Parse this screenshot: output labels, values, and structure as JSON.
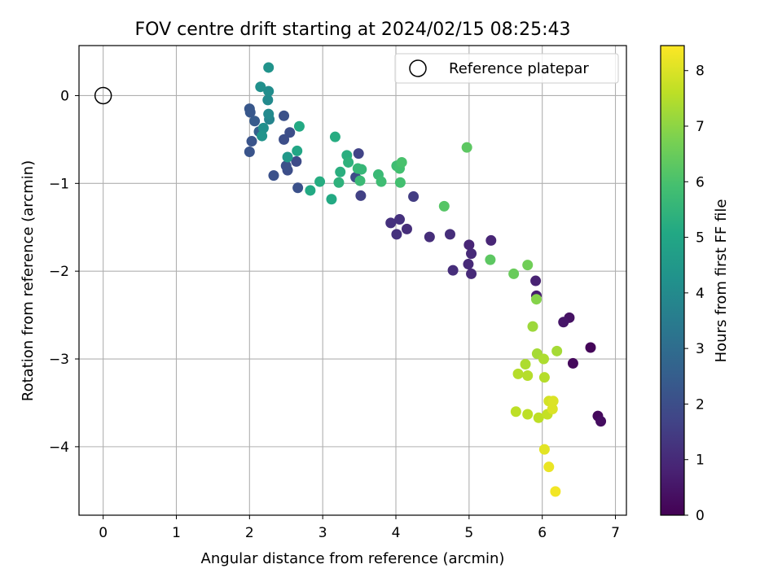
{
  "chart_data": {
    "type": "scatter",
    "title": "FOV centre drift starting at 2024/02/15 08:25:43",
    "xlabel": "Angular distance from reference (arcmin)",
    "ylabel": "Rotation from reference (arcmin)",
    "colorbar_label": "Hours from first FF file",
    "xlim": [
      -0.33,
      7.15
    ],
    "ylim": [
      -4.78,
      0.57
    ],
    "clim": [
      0,
      8.45
    ],
    "grid": true,
    "legend_position": "top-right",
    "x_ticks": [
      0,
      1,
      2,
      3,
      4,
      5,
      6,
      7
    ],
    "x_tick_labels": [
      "0",
      "1",
      "2",
      "3",
      "4",
      "5",
      "6",
      "7"
    ],
    "y_ticks": [
      0,
      -1,
      -2,
      -3,
      -4
    ],
    "y_tick_labels": [
      "0",
      "−1",
      "−2",
      "−3",
      "−4"
    ],
    "c_ticks": [
      0,
      1,
      2,
      3,
      4,
      5,
      6,
      7,
      8
    ],
    "c_tick_labels": [
      "0",
      "1",
      "2",
      "3",
      "4",
      "5",
      "6",
      "7",
      "8"
    ],
    "reference": {
      "label": "Reference platepar",
      "x": 0,
      "y": 0
    },
    "series": [
      {
        "points": [
          [
            6.66,
            -2.87,
            0.1
          ],
          [
            6.42,
            -3.05,
            0.2
          ],
          [
            6.76,
            -3.65,
            0.2
          ],
          [
            6.8,
            -3.71,
            0.3
          ],
          [
            6.37,
            -2.53,
            0.4
          ],
          [
            6.29,
            -2.58,
            0.5
          ],
          [
            5.92,
            -2.28,
            0.7
          ],
          [
            5.91,
            -2.11,
            0.8
          ],
          [
            5.3,
            -1.65,
            0.9
          ],
          [
            5.0,
            -1.7,
            0.9
          ],
          [
            5.03,
            -1.8,
            1.0
          ],
          [
            4.99,
            -1.92,
            1.0
          ],
          [
            5.03,
            -2.03,
            1.0
          ],
          [
            4.78,
            -1.99,
            1.1
          ],
          [
            4.74,
            -1.58,
            1.1
          ],
          [
            4.46,
            -1.61,
            1.1
          ],
          [
            4.15,
            -1.52,
            1.1
          ],
          [
            4.05,
            -1.41,
            1.2
          ],
          [
            3.93,
            -1.45,
            1.2
          ],
          [
            4.01,
            -1.58,
            1.2
          ],
          [
            4.24,
            -1.15,
            1.5
          ],
          [
            3.52,
            -1.14,
            1.6
          ],
          [
            3.49,
            -0.66,
            1.7
          ],
          [
            3.45,
            -0.93,
            1.9
          ],
          [
            2.64,
            -0.75,
            1.9
          ],
          [
            2.55,
            -0.42,
            2.0
          ],
          [
            2.52,
            -0.85,
            2.0
          ],
          [
            2.5,
            -0.8,
            2.1
          ],
          [
            2.47,
            -0.23,
            2.1
          ],
          [
            2.47,
            -0.5,
            2.0
          ],
          [
            2.33,
            -0.91,
            2.1
          ],
          [
            2.66,
            -1.05,
            2.1
          ],
          [
            2.0,
            -0.64,
            2.2
          ],
          [
            2.03,
            -0.52,
            2.2
          ],
          [
            2.0,
            -0.15,
            2.3
          ],
          [
            2.01,
            -0.19,
            2.3
          ],
          [
            2.07,
            -0.29,
            2.4
          ],
          [
            2.13,
            -0.41,
            2.6
          ],
          [
            2.27,
            -0.27,
            3.8
          ],
          [
            2.26,
            -0.21,
            4.0
          ],
          [
            2.25,
            -0.05,
            4.0
          ],
          [
            2.26,
            0.05,
            4.1
          ],
          [
            2.15,
            0.1,
            4.2
          ],
          [
            2.26,
            0.32,
            4.3
          ],
          [
            2.19,
            -0.37,
            4.2
          ],
          [
            2.17,
            -0.46,
            4.3
          ],
          [
            2.52,
            -0.7,
            4.5
          ],
          [
            2.65,
            -0.63,
            5.0
          ],
          [
            2.68,
            -0.35,
            5.1
          ],
          [
            2.83,
            -1.08,
            5.1
          ],
          [
            2.96,
            -0.98,
            5.2
          ],
          [
            3.12,
            -1.18,
            5.1
          ],
          [
            3.17,
            -0.47,
            5.2
          ],
          [
            3.24,
            -0.87,
            5.3
          ],
          [
            3.22,
            -0.99,
            5.4
          ],
          [
            3.33,
            -0.68,
            5.3
          ],
          [
            3.35,
            -0.76,
            5.4
          ],
          [
            3.48,
            -0.83,
            5.6
          ],
          [
            3.53,
            -0.84,
            5.6
          ],
          [
            3.51,
            -0.97,
            5.7
          ],
          [
            3.76,
            -0.9,
            5.7
          ],
          [
            3.8,
            -0.98,
            5.8
          ],
          [
            4.01,
            -0.8,
            5.8
          ],
          [
            4.05,
            -0.83,
            5.9
          ],
          [
            4.08,
            -0.76,
            6.0
          ],
          [
            4.06,
            -0.99,
            5.9
          ],
          [
            4.66,
            -1.26,
            6.2
          ],
          [
            4.97,
            -0.59,
            6.3
          ],
          [
            5.29,
            -1.87,
            6.3
          ],
          [
            5.61,
            -2.03,
            6.5
          ],
          [
            5.8,
            -1.93,
            6.6
          ],
          [
            5.92,
            -2.32,
            6.9
          ],
          [
            5.87,
            -2.63,
            7.2
          ],
          [
            6.2,
            -2.91,
            7.3
          ],
          [
            5.93,
            -2.94,
            7.3
          ],
          [
            6.02,
            -3.0,
            7.4
          ],
          [
            5.77,
            -3.06,
            7.4
          ],
          [
            5.67,
            -3.17,
            7.5
          ],
          [
            5.8,
            -3.19,
            7.5
          ],
          [
            6.03,
            -3.21,
            7.5
          ],
          [
            5.64,
            -3.6,
            7.6
          ],
          [
            5.8,
            -3.63,
            7.6
          ],
          [
            5.95,
            -3.67,
            7.6
          ],
          [
            6.07,
            -3.63,
            7.7
          ],
          [
            6.09,
            -3.48,
            7.9
          ],
          [
            6.15,
            -3.48,
            8.0
          ],
          [
            6.14,
            -3.57,
            8.0
          ],
          [
            6.03,
            -4.03,
            8.1
          ],
          [
            6.09,
            -4.23,
            8.2
          ],
          [
            6.18,
            -4.51,
            8.3
          ]
        ]
      }
    ]
  }
}
